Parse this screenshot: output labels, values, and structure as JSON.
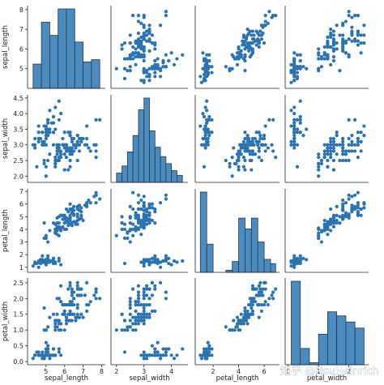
{
  "chart_data": {
    "type": "scatter",
    "kind": "pairplot",
    "variables": [
      "sepal_length",
      "sepal_width",
      "petal_length",
      "petal_width"
    ],
    "colors": {
      "fill": "#4c8bbd",
      "edge": "#1f3a52",
      "point": "#2a72b0"
    },
    "axis_ranges": {
      "sepal_length": [
        4.0,
        8.2
      ],
      "sepal_width": [
        1.8,
        4.6
      ],
      "petal_length": [
        0.6,
        7.2
      ],
      "petal_width": [
        -0.1,
        2.65
      ]
    },
    "ticks": {
      "sepal_length": [
        5,
        6,
        7,
        8
      ],
      "sepal_width": [
        2.0,
        2.5,
        3.0,
        3.5,
        4.0,
        4.5
      ],
      "petal_length": [
        1,
        2,
        3,
        4,
        5,
        6,
        7
      ],
      "petal_width": [
        0.0,
        0.5,
        1.0,
        1.5,
        2.0,
        2.5
      ]
    },
    "y_tick_labels": {
      "sepal_length": [
        "5",
        "6",
        "7",
        "8"
      ],
      "sepal_width": [
        "2.0",
        "2.5",
        "3.0",
        "3.5",
        "4.0",
        "4.5"
      ],
      "petal_length": [
        "1",
        "2",
        "3",
        "4",
        "5",
        "6",
        "7"
      ],
      "petal_width": [
        "0.0",
        "0.5",
        "1.0",
        "1.5",
        "2.0",
        "2.5"
      ]
    },
    "x_tick_labels": {
      "sepal_length": [
        "5",
        "6",
        "7",
        "8"
      ],
      "sepal_width": [
        "2",
        "3",
        "4"
      ],
      "petal_length": [
        "2",
        "4",
        "6"
      ],
      "petal_width": [
        "0",
        "1",
        "2"
      ]
    },
    "x_tick_values": {
      "sepal_length": [
        5,
        6,
        7,
        8
      ],
      "sepal_width": [
        2,
        3,
        4
      ],
      "petal_length": [
        2,
        4,
        6
      ],
      "petal_width": [
        0,
        1,
        2
      ]
    },
    "histograms": {
      "sepal_length": {
        "edges": [
          4.3,
          4.75,
          5.2,
          5.65,
          6.1,
          6.55,
          7.0,
          7.45,
          7.9
        ],
        "counts": [
          11,
          30,
          24,
          36,
          36,
          21,
          12,
          13
        ]
      },
      "sepal_width": {
        "edges": [
          2.0,
          2.2,
          2.4,
          2.6,
          2.8,
          3.0,
          3.2,
          3.4,
          3.6,
          3.8,
          4.0,
          4.2,
          4.4
        ],
        "counts": [
          4,
          7,
          13,
          20,
          31,
          36,
          22,
          15,
          11,
          8,
          5,
          3
        ]
      },
      "petal_length": {
        "edges": [
          1.0,
          1.5,
          2.0,
          2.5,
          3.0,
          3.5,
          4.0,
          4.5,
          5.0,
          5.5,
          6.0,
          6.5,
          6.9
        ],
        "counts": [
          37,
          13,
          0,
          0,
          1,
          5,
          25,
          20,
          25,
          14,
          6,
          4
        ]
      },
      "petal_width": {
        "edges": [
          0.1,
          0.4,
          0.7,
          1.0,
          1.3,
          1.6,
          1.9,
          2.2,
          2.5
        ],
        "counts": [
          41,
          8,
          1,
          15,
          26,
          24,
          21,
          18
        ]
      }
    },
    "columns": {
      "sepal_length": [
        5.1,
        4.9,
        4.7,
        4.6,
        5.0,
        5.4,
        4.6,
        5.0,
        4.4,
        4.9,
        5.4,
        4.8,
        4.8,
        4.3,
        5.8,
        5.7,
        5.4,
        5.1,
        5.7,
        5.1,
        5.4,
        5.1,
        4.6,
        5.1,
        4.8,
        5.0,
        5.0,
        5.2,
        5.2,
        4.7,
        4.8,
        5.4,
        5.2,
        5.5,
        4.9,
        5.0,
        5.5,
        4.9,
        4.4,
        5.1,
        5.0,
        4.5,
        4.4,
        5.0,
        5.1,
        4.8,
        5.1,
        4.6,
        5.3,
        5.0,
        7.0,
        6.4,
        6.9,
        5.5,
        6.5,
        5.7,
        6.3,
        4.9,
        6.6,
        5.2,
        5.0,
        5.9,
        6.0,
        6.1,
        5.6,
        6.7,
        5.6,
        5.8,
        6.2,
        5.6,
        5.9,
        6.1,
        6.3,
        6.1,
        6.4,
        6.6,
        6.8,
        6.7,
        6.0,
        5.7,
        5.5,
        5.5,
        5.8,
        6.0,
        5.4,
        6.0,
        6.7,
        6.3,
        5.6,
        5.5,
        5.5,
        6.1,
        5.8,
        5.0,
        5.6,
        5.7,
        5.7,
        6.2,
        5.1,
        5.7,
        6.3,
        5.8,
        7.1,
        6.3,
        6.5,
        7.6,
        4.9,
        7.3,
        6.7,
        7.2,
        6.5,
        6.4,
        6.8,
        5.7,
        5.8,
        6.4,
        6.5,
        7.7,
        7.7,
        6.0,
        6.9,
        5.6,
        7.7,
        6.3,
        6.7,
        7.2,
        6.2,
        6.1,
        6.4,
        7.2,
        7.4,
        7.9,
        6.4,
        6.3,
        6.1,
        7.7,
        6.3,
        6.4,
        6.0,
        6.9,
        6.7,
        6.9,
        5.8,
        6.8,
        6.7,
        6.7,
        6.3,
        6.5,
        6.2,
        5.9
      ],
      "sepal_width": [
        3.5,
        3.0,
        3.2,
        3.1,
        3.6,
        3.9,
        3.4,
        3.4,
        2.9,
        3.1,
        3.7,
        3.4,
        3.0,
        3.0,
        4.0,
        4.4,
        3.9,
        3.5,
        3.8,
        3.8,
        3.4,
        3.7,
        3.6,
        3.3,
        3.4,
        3.0,
        3.4,
        3.5,
        3.4,
        3.2,
        3.1,
        3.4,
        4.1,
        4.2,
        3.1,
        3.2,
        3.5,
        3.6,
        3.0,
        3.4,
        3.5,
        2.3,
        3.2,
        3.5,
        3.8,
        3.0,
        3.8,
        3.2,
        3.7,
        3.3,
        3.2,
        3.2,
        3.1,
        2.3,
        2.8,
        2.8,
        3.3,
        2.4,
        2.9,
        2.7,
        2.0,
        3.0,
        2.2,
        2.9,
        2.9,
        3.1,
        3.0,
        2.7,
        2.2,
        2.5,
        3.2,
        2.8,
        2.5,
        2.8,
        2.9,
        3.0,
        2.8,
        3.0,
        2.9,
        2.6,
        2.4,
        2.4,
        2.7,
        2.7,
        3.0,
        3.4,
        3.1,
        2.3,
        3.0,
        2.5,
        2.6,
        3.0,
        2.6,
        2.3,
        2.7,
        3.0,
        2.9,
        2.9,
        2.5,
        2.8,
        3.3,
        2.7,
        3.0,
        2.9,
        3.0,
        3.0,
        2.5,
        2.9,
        2.5,
        3.6,
        3.2,
        2.7,
        3.0,
        2.5,
        2.8,
        3.2,
        3.0,
        3.8,
        2.6,
        2.2,
        3.2,
        2.8,
        2.8,
        2.7,
        3.3,
        3.2,
        2.8,
        3.0,
        2.8,
        3.0,
        2.8,
        3.8,
        2.8,
        2.8,
        2.6,
        3.0,
        3.4,
        3.1,
        3.0,
        3.1,
        3.1,
        3.1,
        2.7,
        3.2,
        3.3,
        3.0,
        2.5,
        3.0,
        3.4,
        3.0
      ],
      "petal_length": [
        1.4,
        1.4,
        1.3,
        1.5,
        1.4,
        1.7,
        1.4,
        1.5,
        1.4,
        1.5,
        1.5,
        1.6,
        1.4,
        1.1,
        1.2,
        1.5,
        1.3,
        1.4,
        1.7,
        1.5,
        1.7,
        1.5,
        1.0,
        1.7,
        1.9,
        1.6,
        1.6,
        1.5,
        1.4,
        1.6,
        1.6,
        1.5,
        1.5,
        1.4,
        1.5,
        1.2,
        1.3,
        1.4,
        1.3,
        1.5,
        1.3,
        1.3,
        1.3,
        1.6,
        1.9,
        1.4,
        1.6,
        1.4,
        1.5,
        1.4,
        4.7,
        4.5,
        4.9,
        4.0,
        4.6,
        4.5,
        4.7,
        3.3,
        4.6,
        3.9,
        3.5,
        4.2,
        4.0,
        4.7,
        3.6,
        4.4,
        4.5,
        4.1,
        4.5,
        3.9,
        4.8,
        4.0,
        4.9,
        4.7,
        4.3,
        4.4,
        4.8,
        5.0,
        4.5,
        3.5,
        3.8,
        3.7,
        3.9,
        5.1,
        4.5,
        4.5,
        4.7,
        4.4,
        4.1,
        4.0,
        4.4,
        4.6,
        4.0,
        3.3,
        4.2,
        4.2,
        4.2,
        4.3,
        3.0,
        4.1,
        6.0,
        5.1,
        5.9,
        5.6,
        5.8,
        6.6,
        4.5,
        6.3,
        5.8,
        6.1,
        5.1,
        5.3,
        5.5,
        5.0,
        5.1,
        5.3,
        5.5,
        6.7,
        6.9,
        5.0,
        5.7,
        4.9,
        6.7,
        4.9,
        5.7,
        6.0,
        4.8,
        4.9,
        5.6,
        5.8,
        6.1,
        6.4,
        5.6,
        5.1,
        5.6,
        6.1,
        5.6,
        5.5,
        4.8,
        5.4,
        5.6,
        5.1,
        5.1,
        5.9,
        5.7,
        5.2,
        5.0,
        5.2,
        5.4,
        5.1
      ],
      "petal_width": [
        0.2,
        0.2,
        0.2,
        0.2,
        0.2,
        0.4,
        0.3,
        0.2,
        0.2,
        0.1,
        0.2,
        0.2,
        0.1,
        0.1,
        0.2,
        0.4,
        0.4,
        0.3,
        0.3,
        0.3,
        0.2,
        0.4,
        0.2,
        0.5,
        0.2,
        0.2,
        0.4,
        0.2,
        0.2,
        0.2,
        0.2,
        0.4,
        0.1,
        0.2,
        0.2,
        0.2,
        0.2,
        0.1,
        0.2,
        0.2,
        0.3,
        0.3,
        0.2,
        0.6,
        0.4,
        0.3,
        0.2,
        0.2,
        0.2,
        0.2,
        1.4,
        1.5,
        1.5,
        1.3,
        1.5,
        1.3,
        1.6,
        1.0,
        1.3,
        1.4,
        1.0,
        1.5,
        1.0,
        1.4,
        1.3,
        1.4,
        1.5,
        1.0,
        1.5,
        1.1,
        1.8,
        1.3,
        1.5,
        1.2,
        1.3,
        1.4,
        1.4,
        1.7,
        1.5,
        1.0,
        1.1,
        1.0,
        1.2,
        1.6,
        1.5,
        1.6,
        1.5,
        1.3,
        1.3,
        1.3,
        1.2,
        1.4,
        1.2,
        1.0,
        1.3,
        1.2,
        1.3,
        1.3,
        1.1,
        1.3,
        2.5,
        1.9,
        2.1,
        1.8,
        2.2,
        2.1,
        1.7,
        1.8,
        1.8,
        2.5,
        2.0,
        1.9,
        2.1,
        2.0,
        2.4,
        2.3,
        1.8,
        2.2,
        2.3,
        1.5,
        2.3,
        2.0,
        2.0,
        1.8,
        2.1,
        1.8,
        1.8,
        1.8,
        2.1,
        1.6,
        1.9,
        2.0,
        2.2,
        1.5,
        1.4,
        2.3,
        2.4,
        1.8,
        1.8,
        2.1,
        2.4,
        2.3,
        1.9,
        2.3,
        2.5,
        2.3,
        1.9,
        2.0,
        2.3,
        1.8
      ]
    }
  },
  "watermark": "知乎 @HsuHeinrich"
}
